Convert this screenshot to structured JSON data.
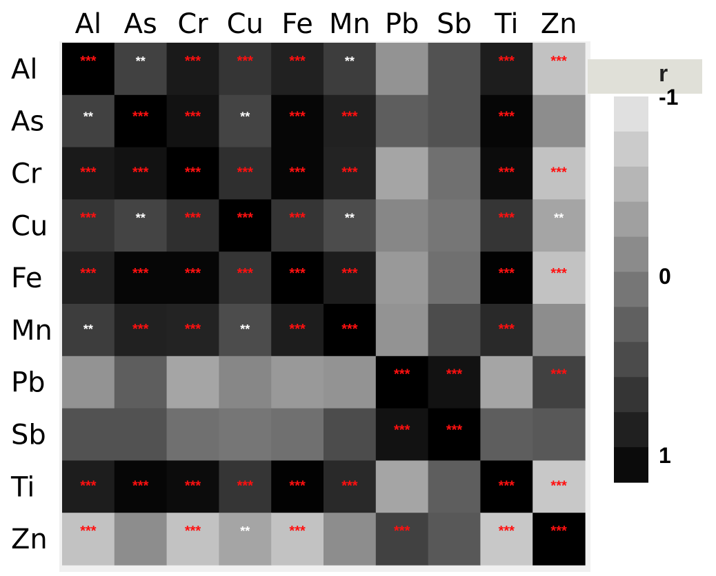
{
  "chart_data": {
    "type": "heatmap",
    "columns": [
      "Al",
      "As",
      "Cr",
      "Cu",
      "Fe",
      "Mn",
      "Pb",
      "Sb",
      "Ti",
      "Zn"
    ],
    "rows": [
      "Al",
      "As",
      "Cr",
      "Cu",
      "Fe",
      "Mn",
      "Pb",
      "Sb",
      "Ti",
      "Zn"
    ],
    "values": [
      [
        1.0,
        0.45,
        0.78,
        0.55,
        0.72,
        0.48,
        -0.25,
        0.3,
        0.75,
        -0.65
      ],
      [
        0.45,
        1.0,
        0.85,
        0.42,
        0.95,
        0.72,
        0.2,
        0.3,
        0.95,
        -0.2
      ],
      [
        0.78,
        0.85,
        1.0,
        0.6,
        0.95,
        0.7,
        -0.4,
        0.05,
        0.9,
        -0.65
      ],
      [
        0.55,
        0.42,
        0.6,
        1.0,
        0.55,
        0.35,
        -0.15,
        0.0,
        0.55,
        -0.4
      ],
      [
        0.72,
        0.95,
        0.95,
        0.55,
        1.0,
        0.75,
        -0.3,
        0.05,
        0.98,
        -0.65
      ],
      [
        0.48,
        0.72,
        0.7,
        0.35,
        0.75,
        1.0,
        -0.25,
        0.35,
        0.65,
        -0.2
      ],
      [
        -0.25,
        0.2,
        -0.4,
        -0.15,
        -0.3,
        -0.25,
        1.0,
        0.85,
        -0.4,
        0.45
      ],
      [
        0.3,
        0.3,
        0.05,
        0.0,
        0.05,
        0.35,
        0.85,
        1.0,
        0.2,
        0.25
      ],
      [
        0.75,
        0.95,
        0.9,
        0.55,
        0.98,
        0.65,
        -0.4,
        0.2,
        1.0,
        -0.7
      ],
      [
        -0.65,
        -0.2,
        -0.65,
        -0.4,
        -0.65,
        -0.2,
        0.45,
        0.25,
        -0.7,
        1.0
      ]
    ],
    "significance": [
      [
        "***",
        "**",
        "***",
        "***",
        "***",
        "**",
        "",
        "",
        "***",
        "***"
      ],
      [
        "**",
        "***",
        "***",
        "**",
        "***",
        "***",
        "",
        "",
        "***",
        ""
      ],
      [
        "***",
        "***",
        "***",
        "***",
        "***",
        "***",
        "",
        "",
        "***",
        "***"
      ],
      [
        "***",
        "**",
        "***",
        "***",
        "***",
        "**",
        "",
        "",
        "***",
        "**"
      ],
      [
        "***",
        "***",
        "***",
        "***",
        "***",
        "***",
        "",
        "",
        "***",
        "***"
      ],
      [
        "**",
        "***",
        "***",
        "**",
        "***",
        "***",
        "",
        "",
        "***",
        ""
      ],
      [
        "",
        "",
        "",
        "",
        "",
        "",
        "***",
        "***",
        "",
        "***"
      ],
      [
        "",
        "",
        "",
        "",
        "",
        "",
        "***",
        "***",
        "",
        ""
      ],
      [
        "***",
        "***",
        "***",
        "***",
        "***",
        "***",
        "",
        "",
        "***",
        "***"
      ],
      [
        "***",
        "",
        "***",
        "**",
        "***",
        "",
        "***",
        "",
        "***",
        "***"
      ]
    ],
    "significance_colors": [
      [
        "red",
        "white",
        "red",
        "red",
        "red",
        "white",
        "",
        "",
        "red",
        "red"
      ],
      [
        "white",
        "red",
        "red",
        "white",
        "red",
        "red",
        "",
        "",
        "red",
        ""
      ],
      [
        "red",
        "red",
        "red",
        "red",
        "red",
        "red",
        "",
        "",
        "red",
        "red"
      ],
      [
        "red",
        "white",
        "red",
        "red",
        "red",
        "white",
        "",
        "",
        "red",
        "white"
      ],
      [
        "red",
        "red",
        "red",
        "red",
        "red",
        "red",
        "",
        "",
        "red",
        "red"
      ],
      [
        "white",
        "red",
        "red",
        "white",
        "red",
        "red",
        "",
        "",
        "red",
        ""
      ],
      [
        "",
        "",
        "",
        "",
        "",
        "",
        "red",
        "red",
        "",
        "red"
      ],
      [
        "",
        "",
        "",
        "",
        "",
        "",
        "red",
        "red",
        "",
        ""
      ],
      [
        "red",
        "red",
        "red",
        "red",
        "red",
        "red",
        "",
        "",
        "red",
        "red"
      ],
      [
        "red",
        "",
        "red",
        "white",
        "red",
        "",
        "red",
        "",
        "red",
        "red"
      ]
    ],
    "color_scale": {
      "title": "r",
      "min": -1,
      "max": 1,
      "ticks": [
        -1,
        0,
        1
      ],
      "tick_labels": [
        "-1",
        "0",
        "1"
      ],
      "low_color": "#ffffff",
      "high_color": "#000000",
      "steps": 11
    },
    "colors": {
      "red_marker": "#ff1010",
      "white_marker": "#ffffff"
    }
  }
}
